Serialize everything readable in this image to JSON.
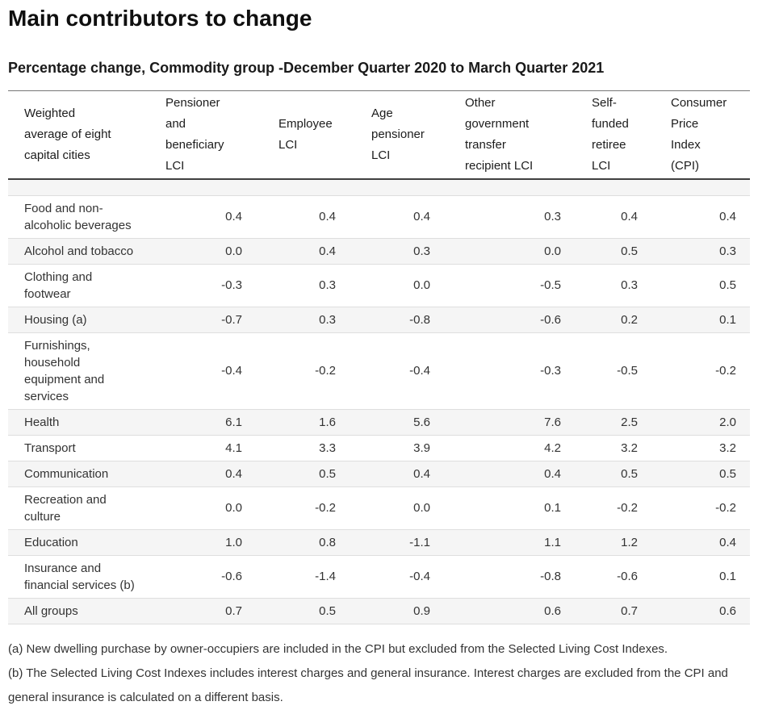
{
  "page": {
    "title": "Main contributors to change",
    "subtitle": "Percentage change, Commodity group -December Quarter 2020 to March Quarter 2021"
  },
  "table": {
    "columns": [
      {
        "label": "Weighted\naverage of eight\ncapital cities"
      },
      {
        "label": "Pensioner\nand\nbeneficiary\nLCI"
      },
      {
        "label": "Employee\nLCI"
      },
      {
        "label": "Age\npensioner\nLCI"
      },
      {
        "label": "Other\ngovernment\ntransfer\nrecipient LCI"
      },
      {
        "label": "Self-\nfunded\nretiree\nLCI"
      },
      {
        "label": "Consumer\nPrice\nIndex\n(CPI)"
      }
    ],
    "rows": [
      {
        "label": "",
        "values": [
          "",
          "",
          "",
          "",
          "",
          ""
        ]
      },
      {
        "label": "Food and non-\nalcoholic beverages",
        "values": [
          "0.4",
          "0.4",
          "0.4",
          "0.3",
          "0.4",
          "0.4"
        ]
      },
      {
        "label": "Alcohol and tobacco",
        "values": [
          "0.0",
          "0.4",
          "0.3",
          "0.0",
          "0.5",
          "0.3"
        ]
      },
      {
        "label": "Clothing and\nfootwear",
        "values": [
          "-0.3",
          "0.3",
          "0.0",
          "-0.5",
          "0.3",
          "0.5"
        ]
      },
      {
        "label": "Housing (a)",
        "values": [
          "-0.7",
          "0.3",
          "-0.8",
          "-0.6",
          "0.2",
          "0.1"
        ]
      },
      {
        "label": "Furnishings,\nhousehold\nequipment and\nservices",
        "values": [
          "-0.4",
          "-0.2",
          "-0.4",
          "-0.3",
          "-0.5",
          "-0.2"
        ]
      },
      {
        "label": "Health",
        "values": [
          "6.1",
          "1.6",
          "5.6",
          "7.6",
          "2.5",
          "2.0"
        ]
      },
      {
        "label": "Transport",
        "values": [
          "4.1",
          "3.3",
          "3.9",
          "4.2",
          "3.2",
          "3.2"
        ]
      },
      {
        "label": "Communication",
        "values": [
          "0.4",
          "0.5",
          "0.4",
          "0.4",
          "0.5",
          "0.5"
        ]
      },
      {
        "label": "Recreation and\nculture",
        "values": [
          "0.0",
          "-0.2",
          "0.0",
          "0.1",
          "-0.2",
          "-0.2"
        ]
      },
      {
        "label": "Education",
        "values": [
          "1.0",
          "0.8",
          "-1.1",
          "1.1",
          "1.2",
          "0.4"
        ]
      },
      {
        "label": "Insurance and\nfinancial services (b)",
        "values": [
          "-0.6",
          "-1.4",
          "-0.4",
          "-0.8",
          "-0.6",
          "0.1"
        ]
      },
      {
        "label": "All groups",
        "values": [
          "0.7",
          "0.5",
          "0.9",
          "0.6",
          "0.7",
          "0.6"
        ]
      }
    ]
  },
  "footnotes": [
    "(a) New dwelling purchase by owner-occupiers are included in the CPI but excluded from the Selected Living Cost Indexes.",
    "(b) The Selected Living Cost Indexes includes interest charges and general insurance. Interest charges are excluded from the CPI and general insurance is calculated on a different basis."
  ],
  "colors": {
    "stripe": "#f5f5f5",
    "header_rule": "#404040",
    "top_rule": "#767676",
    "row_divider": "#dedede",
    "body_text": "#333333",
    "heading_text": "#0f0f0f"
  }
}
